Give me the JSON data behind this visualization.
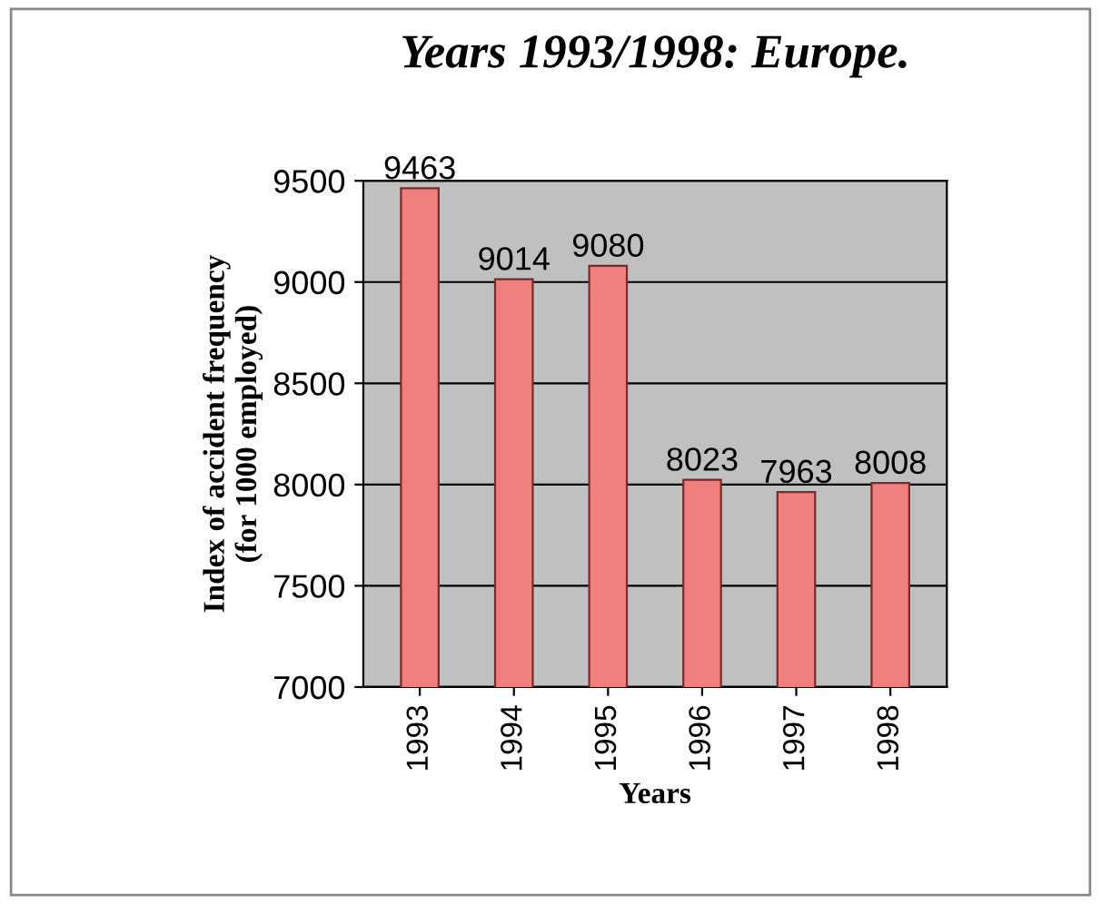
{
  "chart_data": {
    "type": "bar",
    "title": "Years 1993/1998: Europe.",
    "xlabel": "Years",
    "ylabel": "Index of accident frequency\n(for 1000 employed)",
    "categories": [
      "1993",
      "1994",
      "1995",
      "1996",
      "1997",
      "1998"
    ],
    "values": [
      9463,
      9014,
      9080,
      8023,
      7963,
      8008
    ],
    "color": "#f08080",
    "ylim": [
      7000,
      9500
    ],
    "yticks": [
      7000,
      7500,
      8000,
      8500,
      9000,
      9500
    ],
    "grid": "y",
    "data_labels": true
  }
}
